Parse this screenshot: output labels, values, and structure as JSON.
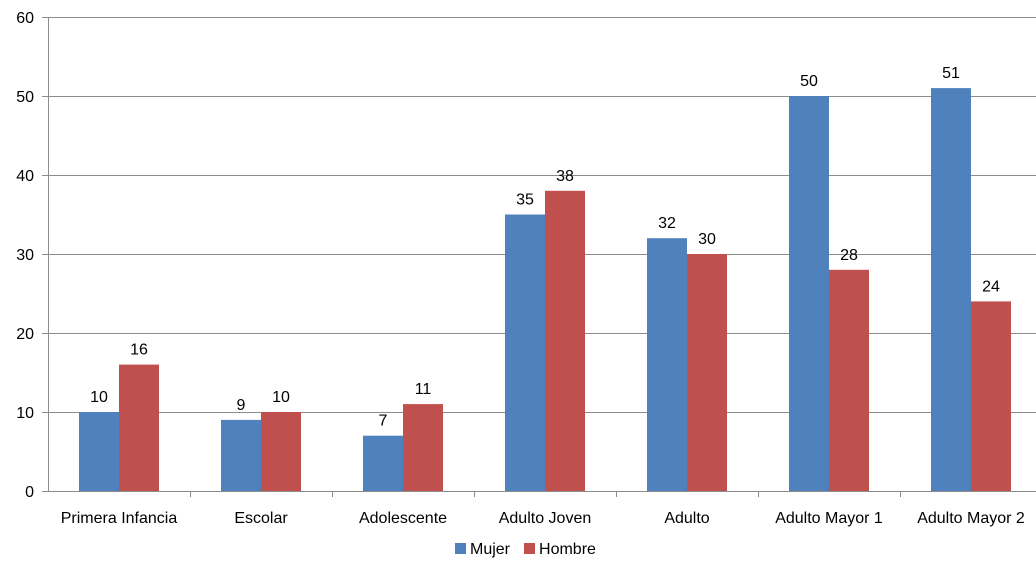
{
  "chart_data": {
    "type": "bar",
    "title": "",
    "xlabel": "",
    "ylabel": "",
    "categories": [
      "Primera Infancia",
      "Escolar",
      "Adolescente",
      "Adulto Joven",
      "Adulto",
      "Adulto Mayor 1",
      "Adulto Mayor 2"
    ],
    "series": [
      {
        "name": "Mujer",
        "values": [
          10,
          9,
          7,
          35,
          32,
          50,
          51
        ],
        "color": "#4F81BD"
      },
      {
        "name": "Hombre",
        "values": [
          16,
          10,
          11,
          38,
          30,
          28,
          24
        ],
        "color": "#C0504D"
      }
    ],
    "ylim": [
      0,
      60
    ],
    "yticks": [
      0,
      10,
      20,
      30,
      40,
      50,
      60
    ],
    "grid": true,
    "data_labels": true,
    "legend_position": "bottom"
  }
}
